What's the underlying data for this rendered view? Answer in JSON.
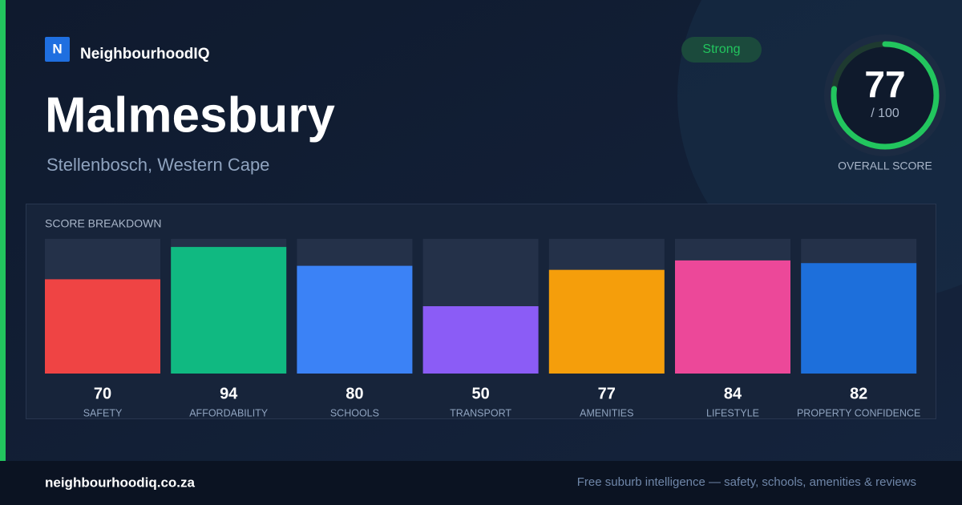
{
  "brand": {
    "logo": "N",
    "name": "NeighbourhoodIQ"
  },
  "title": "Malmesbury",
  "subtitle": "Stellenbosch, Western Cape",
  "badge": "Strong",
  "overall": {
    "score": 77,
    "max": {
      "value": 100,
      "label": "/ 100"
    },
    "label": "OVERALL SCORE"
  },
  "chart_data": {
    "type": "bar",
    "title": "SCORE BREAKDOWN",
    "categories": [
      "SAFETY",
      "AFFORDABILITY",
      "SCHOOLS",
      "TRANSPORT",
      "AMENITIES",
      "LIFESTYLE",
      "PROPERTY CONFIDENCE"
    ],
    "values": [
      70,
      94,
      80,
      50,
      77,
      84,
      82
    ],
    "colors": [
      "#ef4444",
      "#10b981",
      "#3b82f6",
      "#8b5cf6",
      "#f59e0b",
      "#ec4899",
      "#1d6fdb"
    ],
    "ylim": [
      0,
      100
    ]
  },
  "footer": {
    "site": "neighbourhoodiq.co.za",
    "tagline": "Free suburb intelligence — safety, schools, amenities & reviews"
  }
}
